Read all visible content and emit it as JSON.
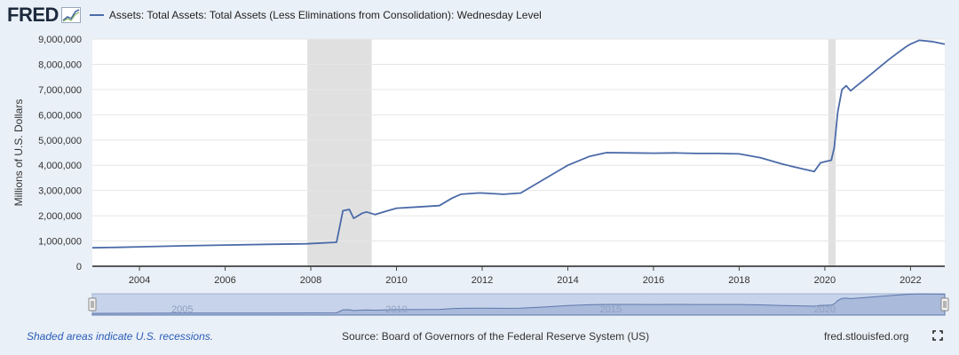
{
  "header": {
    "logo_text": "FRED",
    "legend_label": "Assets: Total Assets: Total Assets (Less Eliminations from Consolidation): Wednesday Level"
  },
  "footer": {
    "recession_note": "Shaded areas indicate U.S. recessions.",
    "source": "Source: Board of Governors of the Federal Reserve System (US)",
    "site": "fred.stlouisfed.org"
  },
  "icons": {
    "logo": "fred-graph-icon",
    "fullscreen": "fullscreen-icon"
  },
  "colors": {
    "series": "#4b6aa8",
    "recession": "#e0e0e0",
    "background": "#eaf0f7",
    "plot_bg": "#ffffff",
    "navigator_fill": "#c7d3ea"
  },
  "chart_data": {
    "type": "line",
    "title": "",
    "xlabel": "",
    "ylabel": "Millions of U.S. Dollars",
    "xlim": [
      2002.9,
      2022.8
    ],
    "ylim": [
      0,
      9000000
    ],
    "yticks": [
      0,
      1000000,
      2000000,
      3000000,
      4000000,
      5000000,
      6000000,
      7000000,
      8000000,
      9000000
    ],
    "ytick_labels": [
      "0",
      "1,000,000",
      "2,000,000",
      "3,000,000",
      "4,000,000",
      "5,000,000",
      "6,000,000",
      "7,000,000",
      "8,000,000",
      "9,000,000"
    ],
    "xticks": [
      2004,
      2006,
      2008,
      2010,
      2012,
      2014,
      2016,
      2018,
      2020,
      2022
    ],
    "xtick_labels": [
      "2004",
      "2006",
      "2008",
      "2010",
      "2012",
      "2014",
      "2016",
      "2018",
      "2020",
      "2022"
    ],
    "navigator_ticks": [
      2005,
      2010,
      2015,
      2020
    ],
    "navigator_tick_labels": [
      "2005",
      "2010",
      "2015",
      "2020"
    ],
    "grid": true,
    "recessions": [
      [
        2007.92,
        2009.42
      ],
      [
        2020.08,
        2020.25
      ]
    ],
    "series": [
      {
        "name": "Assets: Total Assets: Total Assets (Less Eliminations from Consolidation): Wednesday Level",
        "x": [
          2002.9,
          2003.5,
          2004.0,
          2005.0,
          2006.0,
          2007.0,
          2007.9,
          2008.6,
          2008.75,
          2008.9,
          2009.0,
          2009.2,
          2009.3,
          2009.5,
          2009.8,
          2010.0,
          2010.5,
          2011.0,
          2011.3,
          2011.5,
          2011.9,
          2012.0,
          2012.5,
          2012.9,
          2013.5,
          2014.0,
          2014.5,
          2014.9,
          2015.5,
          2016.0,
          2016.5,
          2017.0,
          2017.5,
          2018.0,
          2018.5,
          2019.0,
          2019.5,
          2019.75,
          2019.9,
          2020.15,
          2020.22,
          2020.3,
          2020.4,
          2020.5,
          2020.6,
          2021.0,
          2021.5,
          2021.9,
          2022.0,
          2022.2,
          2022.5,
          2022.8
        ],
        "y": [
          730000,
          750000,
          770000,
          810000,
          840000,
          870000,
          890000,
          950000,
          2200000,
          2250000,
          1900000,
          2100000,
          2150000,
          2050000,
          2200000,
          2300000,
          2350000,
          2400000,
          2700000,
          2850000,
          2900000,
          2900000,
          2850000,
          2900000,
          3500000,
          4000000,
          4350000,
          4500000,
          4490000,
          4480000,
          4490000,
          4470000,
          4470000,
          4450000,
          4300000,
          4050000,
          3850000,
          3750000,
          4100000,
          4200000,
          4700000,
          6100000,
          7000000,
          7150000,
          6950000,
          7500000,
          8200000,
          8700000,
          8800000,
          8950000,
          8900000,
          8800000
        ]
      }
    ]
  }
}
